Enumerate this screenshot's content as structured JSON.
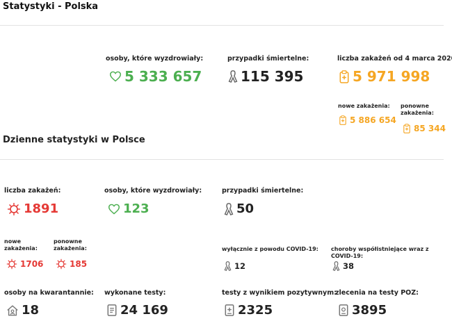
{
  "page_title": "Statystyki - Polska",
  "totals": {
    "recovered": {
      "label": "osoby, które wyzdrowiały:",
      "value": "5 333 657",
      "icon": "heart-icon",
      "color": "#4caf50"
    },
    "deaths": {
      "label": "przypadki śmiertelne:",
      "value": "115 395",
      "icon": "ribbon-icon",
      "color": "#222222"
    },
    "infections": {
      "label": "liczba zakażeń od 4 marca 2020:",
      "value": "5 971 998",
      "icon": "clipboard-plus-icon",
      "color": "#f5a623"
    },
    "new_infections": {
      "label": "nowe zakażenia:",
      "value": "5 886 654"
    },
    "reinfections": {
      "label": "ponowne zakażenia:",
      "value": "85 344"
    }
  },
  "daily": {
    "section_title": "Dzienne statystyki w Polsce",
    "infections": {
      "label": "liczba zakażeń:",
      "value": "1891",
      "icon": "virus-icon",
      "color": "#e53935"
    },
    "recovered": {
      "label": "osoby, które wyzdrowiały:",
      "value": "123",
      "icon": "heart-icon"
    },
    "deaths": {
      "label": "przypadki śmiertelne:",
      "value": "50",
      "icon": "ribbon-icon"
    },
    "new_infections": {
      "label": "nowe zakażenia:",
      "value": "1706"
    },
    "reinfections": {
      "label": "ponowne zakażenia:",
      "value": "185"
    },
    "covid_only_deaths": {
      "label": "wyłącznie z powodu COVID-19:",
      "value": "12"
    },
    "comorbid_deaths": {
      "label": "choroby współistniejące wraz z COVID-19:",
      "value": "38"
    },
    "quarantine": {
      "label": "osoby na kwarantannie:",
      "value": "18",
      "icon": "house-icon"
    },
    "tests": {
      "label": "wykonane testy:",
      "value": "24 169",
      "icon": "test-document-icon"
    },
    "positive_tests": {
      "label": "testy z wynikiem pozytywnym:",
      "value": "2325",
      "icon": "positive-test-icon"
    },
    "poz_orders": {
      "label": "zlecenia na testy POZ:",
      "value": "3895",
      "icon": "test-order-icon"
    }
  }
}
